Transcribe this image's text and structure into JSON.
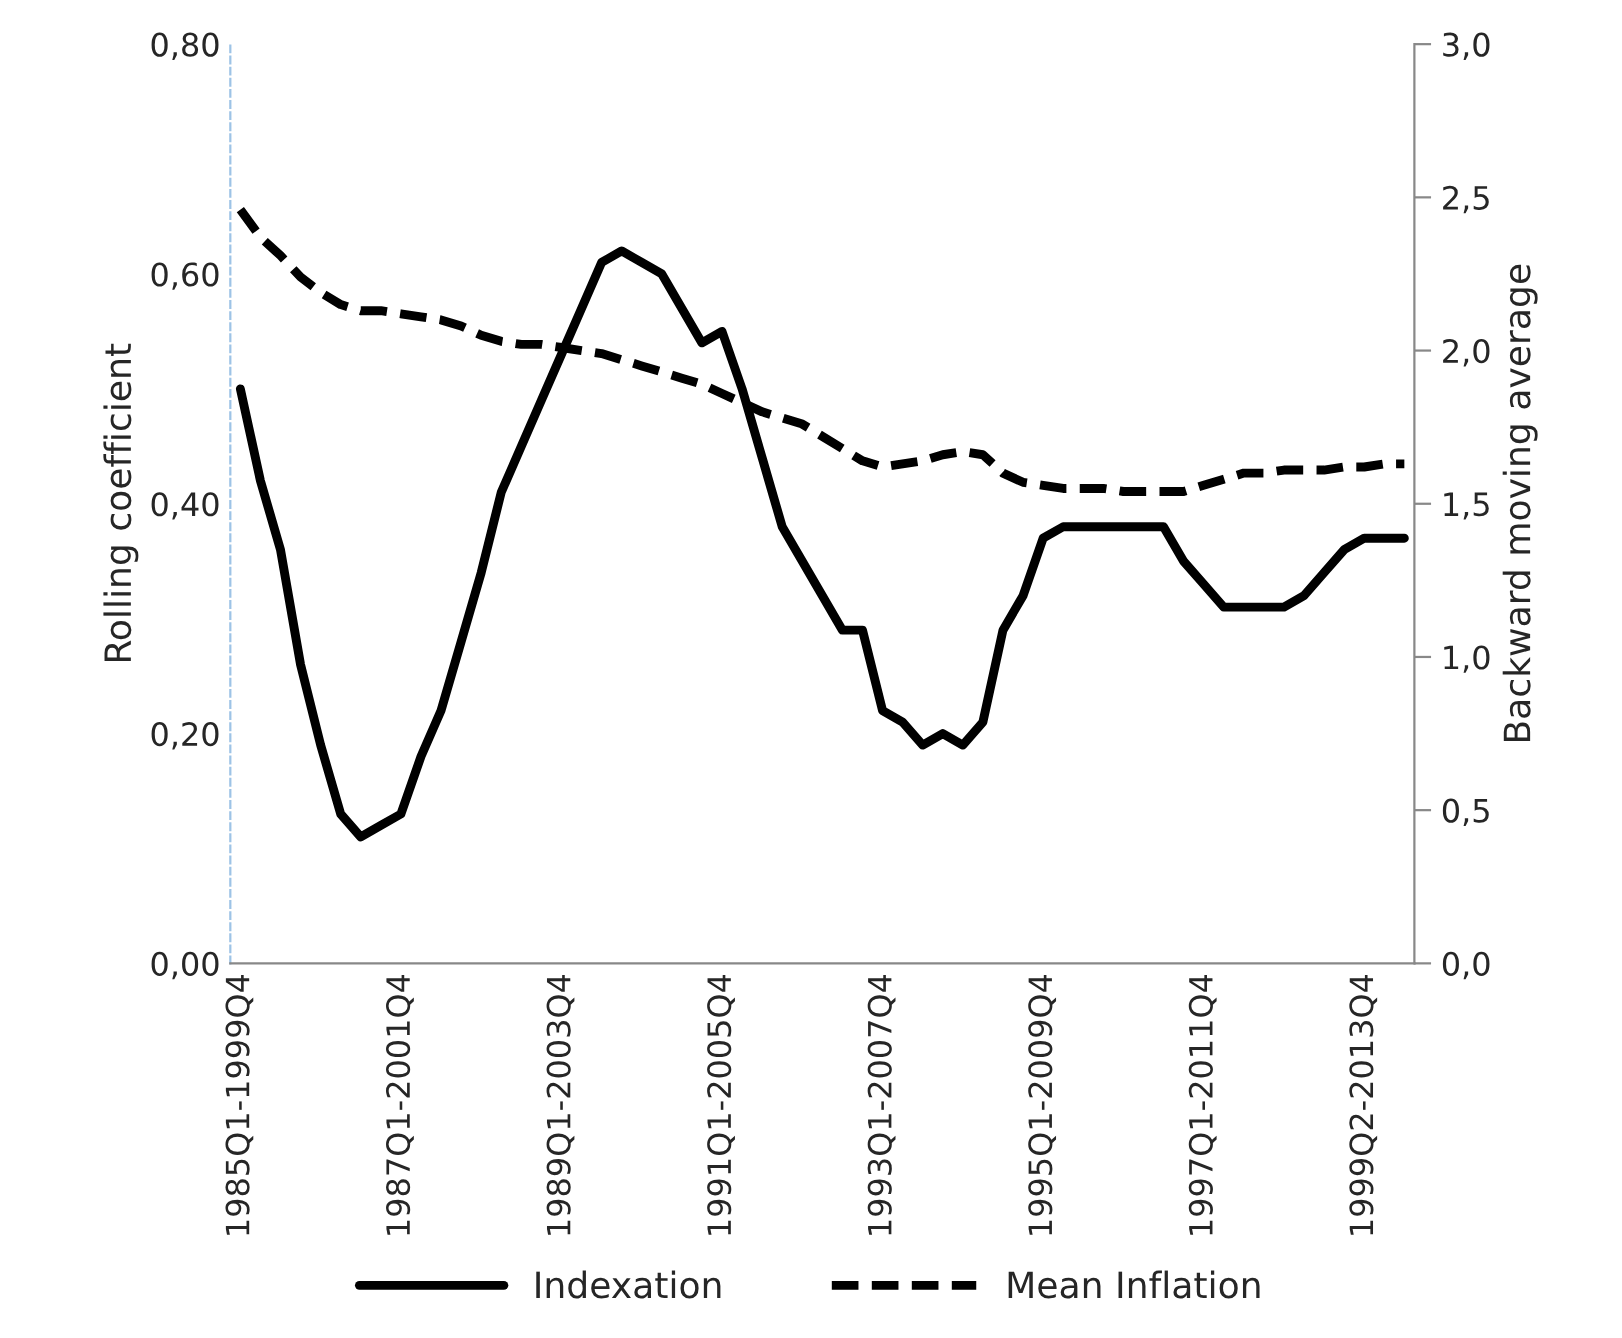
{
  "chart_data": {
    "type": "line",
    "ylabel": "Rolling coefficient",
    "y2label": "Backward moving average",
    "categories": [
      "1985Q1-1999Q4",
      null,
      null,
      null,
      null,
      null,
      null,
      null,
      "1987Q1-2001Q4",
      null,
      null,
      null,
      null,
      null,
      null,
      null,
      "1989Q1-2003Q4",
      null,
      null,
      null,
      null,
      null,
      null,
      null,
      "1991Q1-2005Q4",
      null,
      null,
      null,
      null,
      null,
      null,
      null,
      "1993Q1-2007Q4",
      null,
      null,
      null,
      null,
      null,
      null,
      null,
      "1995Q1-2009Q4",
      null,
      null,
      null,
      null,
      null,
      null,
      null,
      "1997Q1-2011Q4",
      null,
      null,
      null,
      null,
      null,
      null,
      null,
      "1999Q2-2013Q4",
      null,
      null
    ],
    "series": [
      {
        "name": "Indexation",
        "color": "#000000",
        "line_style": "solid",
        "values": [
          0.5,
          0.42,
          0.36,
          0.26,
          0.19,
          0.13,
          0.11,
          0.12,
          0.13,
          0.18,
          0.22,
          0.28,
          0.34,
          0.41,
          0.45,
          0.49,
          0.53,
          0.57,
          0.61,
          0.62,
          0.61,
          0.6,
          0.57,
          0.54,
          0.55,
          0.5,
          0.44,
          0.38,
          0.35,
          0.32,
          0.29,
          0.29,
          0.22,
          0.21,
          0.19,
          0.2,
          0.19,
          0.21,
          0.29,
          0.32,
          0.37,
          0.38,
          0.38,
          0.38,
          0.38,
          0.38,
          0.38,
          0.35,
          0.33,
          0.31,
          0.31,
          0.31,
          0.31,
          0.32,
          0.34,
          0.36,
          0.37,
          0.37,
          0.37
        ]
      },
      {
        "name": "Mean Inflation",
        "color": "#000000",
        "line_style": "dashed",
        "axis": "y2",
        "values": [
          2.46,
          2.37,
          2.31,
          2.24,
          2.19,
          2.15,
          2.13,
          2.13,
          2.12,
          2.11,
          2.1,
          2.08,
          2.05,
          2.03,
          2.02,
          2.02,
          2.01,
          2.0,
          1.99,
          1.97,
          1.95,
          1.93,
          1.91,
          1.89,
          1.86,
          1.83,
          1.8,
          1.78,
          1.76,
          1.72,
          1.68,
          1.64,
          1.62,
          1.63,
          1.64,
          1.66,
          1.67,
          1.66,
          1.6,
          1.57,
          1.56,
          1.55,
          1.55,
          1.55,
          1.54,
          1.54,
          1.54,
          1.54,
          1.56,
          1.58,
          1.6,
          1.6,
          1.61,
          1.61,
          1.61,
          1.62,
          1.62,
          1.63,
          1.63
        ]
      }
    ],
    "ylim": [
      0,
      0.8
    ],
    "yticks": [
      {
        "value": 0,
        "label": "0,00"
      },
      {
        "value": 0.2,
        "label": "0,20"
      },
      {
        "value": 0.4,
        "label": "0,40"
      },
      {
        "value": 0.6,
        "label": "0,60"
      },
      {
        "value": 0.8,
        "label": "0,80"
      }
    ],
    "y2lim": [
      0,
      3
    ],
    "y2ticks": [
      {
        "value": 0,
        "label": "0,0"
      },
      {
        "value": 0.5,
        "label": "0,5"
      },
      {
        "value": 1,
        "label": "1,0"
      },
      {
        "value": 1.5,
        "label": "1,5"
      },
      {
        "value": 2,
        "label": "2,0"
      },
      {
        "value": 2.5,
        "label": "2,5"
      },
      {
        "value": 3,
        "label": "3,0"
      }
    ],
    "grid": false,
    "legend": "bottom",
    "marker": "none"
  }
}
